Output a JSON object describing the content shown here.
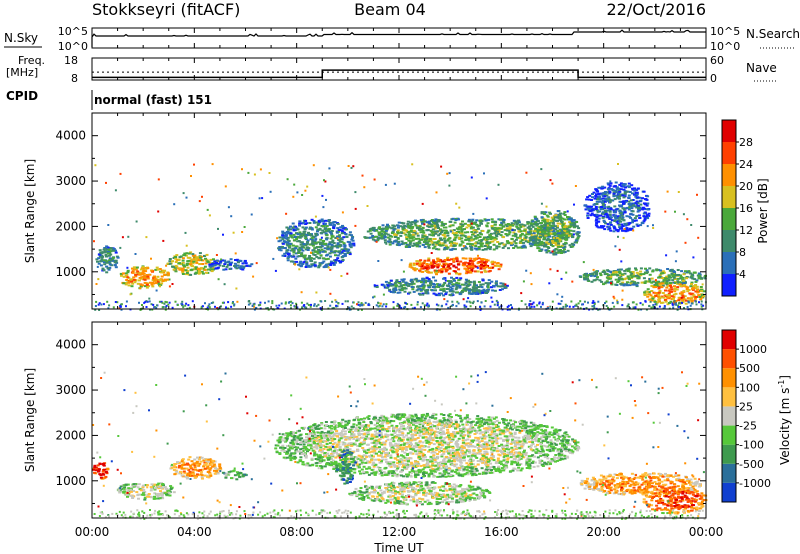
{
  "header": {
    "title": "Stokkseyri (fitACF)",
    "beam": "Beam 04",
    "date": "22/Oct/2016"
  },
  "noise_panel": {
    "left_label": "N.Sky",
    "left_ticks": [
      "10^5",
      "10^0"
    ],
    "right_ticks": [
      "10^5",
      "10^0"
    ],
    "right_label": "N.Search"
  },
  "freq_panel": {
    "left_label_line1": "Freq.",
    "left_label_line2": "[MHz]",
    "left_ticks": [
      "18",
      "8"
    ],
    "right_ticks": [
      "60",
      "0"
    ],
    "right_label": "Nave",
    "nave_steps": [
      {
        "from": 0,
        "to": 9,
        "value": 7
      },
      {
        "from": 9,
        "to": 19,
        "value": 27
      },
      {
        "from": 19,
        "to": 24,
        "value": 7
      }
    ],
    "freq_level": 11.6
  },
  "cpid": {
    "label": "CPID",
    "value": "normal (fast) 151"
  },
  "time_axis": {
    "ticks": [
      "00:00",
      "04:00",
      "08:00",
      "12:00",
      "16:00",
      "20:00",
      "00:00"
    ],
    "label": "Time UT",
    "range": [
      0,
      24
    ]
  },
  "chart_data": [
    {
      "type": "heatmap",
      "panel": "power",
      "ylabel": "Slant Range [km]",
      "yticks": [
        "1000",
        "2000",
        "3000",
        "4000"
      ],
      "ylim": [
        180,
        4500
      ],
      "colorbar_label": "Power [dB]",
      "colorbar_ticks": [
        "4",
        "8",
        "12",
        "16",
        "20",
        "24",
        "28"
      ],
      "colorbar_colors": [
        "#1020ff",
        "#2a6fb8",
        "#3e8a6b",
        "#4aa83a",
        "#d8c020",
        "#ff9000",
        "#ff4000",
        "#e00000"
      ],
      "patches": [
        {
          "t0": 0.1,
          "t1": 1.0,
          "r0": 1000,
          "r1": 1600,
          "level": 2
        },
        {
          "t0": 1.0,
          "t1": 3.0,
          "r0": 650,
          "r1": 1150,
          "level": 5
        },
        {
          "t0": 2.9,
          "t1": 4.9,
          "r0": 950,
          "r1": 1450,
          "level": 4
        },
        {
          "t0": 4.5,
          "t1": 6.2,
          "r0": 1050,
          "r1": 1300,
          "level": 1
        },
        {
          "t0": 7.2,
          "t1": 10.2,
          "r0": 1100,
          "r1": 2200,
          "level": 2
        },
        {
          "t0": 10.5,
          "t1": 18.8,
          "r0": 1500,
          "r1": 2200,
          "level": 3
        },
        {
          "t0": 12.3,
          "t1": 16.0,
          "r0": 950,
          "r1": 1350,
          "level": 6
        },
        {
          "t0": 11.0,
          "t1": 16.2,
          "r0": 500,
          "r1": 900,
          "level": 2
        },
        {
          "t0": 17.0,
          "t1": 19.0,
          "r0": 1400,
          "r1": 2400,
          "level": 3
        },
        {
          "t0": 19.0,
          "t1": 24.0,
          "r0": 700,
          "r1": 1100,
          "level": 3
        },
        {
          "t0": 21.5,
          "t1": 24.0,
          "r0": 300,
          "r1": 800,
          "level": 5
        },
        {
          "t0": 19.2,
          "t1": 21.8,
          "r0": 1900,
          "r1": 3000,
          "level": 1
        }
      ]
    },
    {
      "type": "heatmap",
      "panel": "velocity",
      "ylabel": "Slant Range [km]",
      "yticks": [
        "1000",
        "2000",
        "3000",
        "4000"
      ],
      "ylim": [
        180,
        4500
      ],
      "colorbar_label": "Velocity [m s^-1]",
      "colorbar_ticks": [
        "1000",
        "500",
        "100",
        "25",
        "-25",
        "-100",
        "-500",
        "-1000"
      ],
      "colorbar_colors": [
        "#1040d0",
        "#2a6f9a",
        "#3e9a4e",
        "#56c83a",
        "#c8c8c0",
        "#ffc040",
        "#ff9000",
        "#ff5000",
        "#e00000"
      ],
      "patches": [
        {
          "t0": 0.0,
          "t1": 0.6,
          "r0": 1050,
          "r1": 1450,
          "level": 8
        },
        {
          "t0": 0.9,
          "t1": 3.2,
          "r0": 600,
          "r1": 1000,
          "level": 4
        },
        {
          "t0": 3.0,
          "t1": 5.0,
          "r0": 1050,
          "r1": 1550,
          "level": 6
        },
        {
          "t0": 5.0,
          "t1": 6.0,
          "r0": 1050,
          "r1": 1250,
          "level": 3
        },
        {
          "t0": 7.0,
          "t1": 19.0,
          "r0": 1100,
          "r1": 2500,
          "level": 4
        },
        {
          "t0": 9.5,
          "t1": 10.3,
          "r0": 950,
          "r1": 1700,
          "level": 2
        },
        {
          "t0": 10.0,
          "t1": 15.5,
          "r0": 500,
          "r1": 1000,
          "level": 4
        },
        {
          "t0": 19.0,
          "t1": 23.8,
          "r0": 700,
          "r1": 1200,
          "level": 6
        },
        {
          "t0": 21.5,
          "t1": 24.0,
          "r0": 300,
          "r1": 900,
          "level": 7
        }
      ]
    }
  ]
}
